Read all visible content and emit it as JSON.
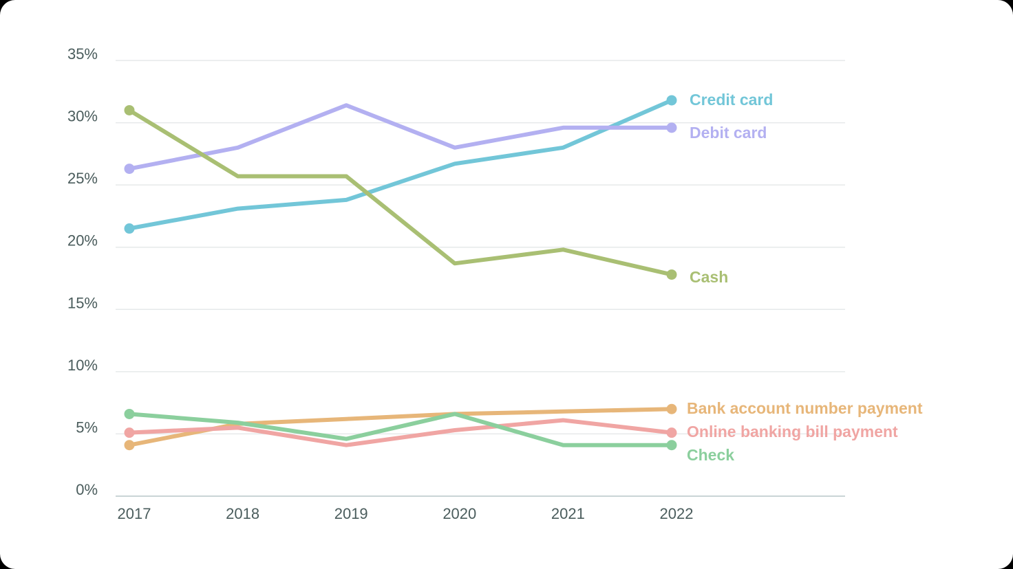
{
  "chart_data": {
    "type": "line",
    "title": "",
    "xlabel": "",
    "ylabel": "",
    "x": [
      "2017",
      "2018",
      "2019",
      "2020",
      "2021",
      "2022"
    ],
    "y_ticks": [
      {
        "value": 0,
        "label": "0%"
      },
      {
        "value": 5,
        "label": "5%"
      },
      {
        "value": 10,
        "label": "10%"
      },
      {
        "value": 15,
        "label": "15%"
      },
      {
        "value": 20,
        "label": "20%"
      },
      {
        "value": 25,
        "label": "25%"
      },
      {
        "value": 30,
        "label": "30%"
      },
      {
        "value": 35,
        "label": "35%"
      }
    ],
    "ylim": [
      0,
      35
    ],
    "grid": true,
    "legend": "inline-right",
    "series": [
      {
        "name": "Credit card",
        "color": "#72c6d8",
        "values": [
          21.5,
          23.1,
          23.8,
          26.7,
          28.0,
          31.8
        ]
      },
      {
        "name": "Debit card",
        "color": "#b3b0f1",
        "values": [
          26.3,
          28.0,
          31.4,
          28.0,
          29.6,
          29.6
        ]
      },
      {
        "name": "Cash",
        "color": "#a9bf73",
        "values": [
          31.0,
          25.7,
          25.7,
          18.7,
          19.8,
          17.8
        ]
      },
      {
        "name": "Bank account number payment",
        "color": "#e7b679",
        "values": [
          4.1,
          5.8,
          6.2,
          6.6,
          6.8,
          7.0
        ]
      },
      {
        "name": "Online banking bill payment",
        "color": "#f0a5a3",
        "values": [
          5.1,
          5.5,
          4.1,
          5.3,
          6.1,
          5.1
        ]
      },
      {
        "name": "Check",
        "color": "#8bcf9d",
        "values": [
          6.6,
          5.9,
          4.6,
          6.6,
          4.1,
          4.1
        ]
      }
    ]
  }
}
